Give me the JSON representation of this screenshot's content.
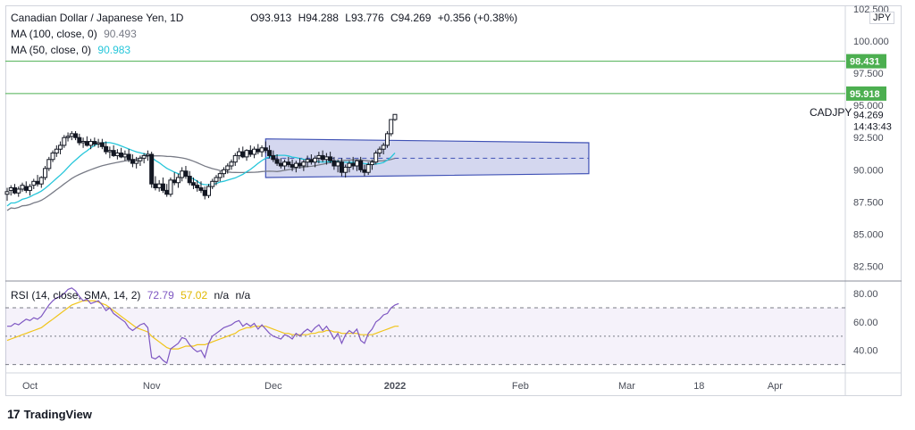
{
  "header": {
    "symbol_title": "Canadian Dollar / Japanese Yen, 1D",
    "open": "O93.913",
    "high": "H94.288",
    "low": "L93.776",
    "close": "C94.269",
    "change": "+0.356 (+0.38%)",
    "ma100_label": "MA (100, close, 0)",
    "ma100_value": "90.493",
    "ma50_label": "MA (50, close, 0)",
    "ma50_value": "90.983"
  },
  "rsi_header": {
    "label": "RSI (14, close, SMA, 14, 2)",
    "rsi_value": "72.79",
    "sma_value": "57.02",
    "na1": "n/a",
    "na2": "n/a"
  },
  "currency": "JPY",
  "ticker": "CADJPY",
  "countdown": "14:43:43",
  "brand": "TradingView",
  "colors": {
    "bull": "#131722",
    "ma50": "#26c6da",
    "ma100": "#787b86",
    "rsi": "#7e57c2",
    "rsi_sma": "#f0c419",
    "hline": "#4caf50",
    "channel_fill": "#c5cae9",
    "channel_stroke": "#3f51b5"
  },
  "chart_data": [
    {
      "type": "candlestick",
      "title": "Canadian Dollar / Japanese Yen, 1D",
      "ylim": [
        81.5,
        102.7
      ],
      "y_ticks": [
        "102.500",
        "100.000",
        "97.500",
        "95.000",
        "92.500",
        "90.000",
        "87.500",
        "85.000",
        "82.500"
      ],
      "y_tick_values": [
        102.5,
        100,
        97.5,
        95,
        92.5,
        90,
        87.5,
        85,
        82.5
      ],
      "x_ticks": [
        "Oct",
        "Nov",
        "Dec",
        "2022",
        "Feb",
        "Mar",
        "18",
        "Apr"
      ],
      "x_tick_index": [
        6,
        38,
        70,
        102,
        135,
        163,
        182,
        202
      ],
      "index_range": [
        0,
        220
      ],
      "candles_ohlc": [
        [
          88.1,
          88.6,
          87.6,
          88.3
        ],
        [
          88.4,
          88.8,
          88.0,
          88.6
        ],
        [
          88.6,
          88.9,
          88.1,
          88.2
        ],
        [
          88.2,
          88.7,
          87.9,
          88.5
        ],
        [
          88.5,
          89.0,
          88.3,
          88.8
        ],
        [
          88.7,
          89.1,
          88.2,
          88.4
        ],
        [
          88.4,
          88.9,
          88.0,
          88.7
        ],
        [
          88.8,
          89.3,
          88.5,
          89.1
        ],
        [
          89.1,
          89.6,
          88.7,
          88.9
        ],
        [
          88.9,
          89.5,
          88.6,
          89.4
        ],
        [
          89.4,
          90.3,
          89.2,
          90.1
        ],
        [
          90.1,
          91.0,
          89.9,
          90.8
        ],
        [
          90.8,
          91.5,
          90.6,
          91.3
        ],
        [
          91.3,
          91.9,
          91.0,
          91.6
        ],
        [
          91.6,
          92.2,
          91.2,
          91.9
        ],
        [
          91.9,
          92.7,
          91.7,
          92.5
        ],
        [
          92.5,
          92.9,
          92.2,
          92.6
        ],
        [
          92.6,
          93.0,
          92.3,
          92.8
        ],
        [
          92.8,
          93.0,
          92.3,
          92.5
        ],
        [
          92.5,
          92.8,
          91.9,
          92.1
        ],
        [
          92.1,
          92.5,
          91.7,
          92.2
        ],
        [
          92.2,
          92.6,
          91.8,
          91.9
        ],
        [
          91.9,
          92.4,
          91.6,
          92.2
        ],
        [
          92.2,
          92.5,
          91.8,
          92.0
        ],
        [
          92.0,
          92.4,
          91.7,
          92.1
        ],
        [
          92.1,
          92.4,
          91.6,
          91.8
        ],
        [
          91.8,
          92.2,
          91.2,
          91.4
        ],
        [
          91.4,
          91.8,
          90.9,
          91.5
        ],
        [
          91.5,
          91.9,
          91.0,
          91.1
        ],
        [
          91.1,
          91.6,
          90.8,
          91.3
        ],
        [
          91.3,
          91.7,
          90.9,
          91.0
        ],
        [
          91.0,
          91.5,
          90.7,
          91.2
        ],
        [
          91.2,
          91.6,
          90.6,
          90.8
        ],
        [
          90.8,
          91.2,
          90.2,
          90.5
        ],
        [
          90.5,
          91.0,
          90.1,
          90.7
        ],
        [
          90.7,
          91.1,
          90.3,
          90.9
        ],
        [
          90.9,
          91.3,
          90.5,
          91.1
        ],
        [
          91.1,
          91.5,
          90.7,
          91.2
        ],
        [
          91.2,
          91.4,
          88.6,
          88.9
        ],
        [
          88.9,
          89.5,
          88.4,
          88.6
        ],
        [
          88.6,
          89.2,
          88.3,
          88.9
        ],
        [
          88.9,
          89.4,
          88.2,
          88.4
        ],
        [
          88.4,
          88.9,
          87.9,
          88.1
        ],
        [
          88.1,
          89.4,
          87.9,
          89.2
        ],
        [
          89.2,
          89.8,
          88.8,
          89.0
        ],
        [
          89.0,
          89.7,
          88.6,
          89.4
        ],
        [
          89.4,
          90.2,
          89.1,
          89.9
        ],
        [
          89.9,
          90.3,
          89.3,
          89.5
        ],
        [
          89.5,
          89.9,
          88.8,
          89.0
        ],
        [
          89.0,
          89.4,
          88.5,
          88.8
        ],
        [
          88.8,
          89.2,
          88.3,
          88.6
        ],
        [
          88.6,
          89.1,
          88.2,
          88.4
        ],
        [
          88.4,
          88.7,
          87.7,
          88.0
        ],
        [
          88.0,
          88.9,
          87.8,
          88.7
        ],
        [
          88.7,
          89.3,
          88.5,
          89.1
        ],
        [
          89.1,
          89.6,
          88.8,
          89.4
        ],
        [
          89.4,
          89.9,
          89.1,
          89.7
        ],
        [
          89.7,
          90.2,
          89.4,
          90.0
        ],
        [
          90.0,
          90.5,
          89.7,
          90.3
        ],
        [
          90.3,
          90.8,
          90.0,
          90.6
        ],
        [
          90.6,
          91.3,
          90.3,
          91.1
        ],
        [
          91.1,
          91.7,
          90.8,
          91.4
        ],
        [
          91.4,
          91.8,
          90.9,
          91.0
        ],
        [
          91.0,
          91.6,
          90.7,
          91.5
        ],
        [
          91.5,
          91.9,
          91.0,
          91.2
        ],
        [
          91.2,
          91.8,
          90.9,
          91.6
        ],
        [
          91.6,
          92.0,
          91.2,
          91.4
        ],
        [
          91.4,
          91.9,
          91.0,
          91.7
        ],
        [
          91.7,
          92.2,
          91.3,
          91.5
        ],
        [
          91.5,
          91.9,
          90.9,
          91.1
        ],
        [
          91.1,
          91.5,
          90.6,
          90.8
        ],
        [
          90.8,
          91.2,
          90.3,
          90.5
        ],
        [
          90.5,
          90.9,
          90.1,
          90.3
        ],
        [
          90.3,
          90.8,
          90.0,
          90.6
        ],
        [
          90.6,
          91.0,
          90.2,
          90.4
        ],
        [
          90.4,
          90.8,
          89.9,
          90.2
        ],
        [
          90.2,
          90.7,
          89.8,
          90.5
        ],
        [
          90.5,
          90.9,
          90.1,
          90.3
        ],
        [
          90.3,
          90.8,
          89.9,
          90.6
        ],
        [
          90.6,
          91.1,
          90.2,
          90.8
        ],
        [
          90.8,
          91.2,
          90.4,
          90.6
        ],
        [
          90.6,
          91.1,
          90.2,
          90.9
        ],
        [
          90.9,
          91.4,
          90.5,
          91.1
        ],
        [
          91.1,
          91.5,
          90.6,
          90.8
        ],
        [
          90.8,
          91.3,
          90.4,
          91.0
        ],
        [
          91.0,
          91.4,
          90.5,
          90.7
        ],
        [
          90.7,
          91.0,
          90.0,
          90.3
        ],
        [
          90.3,
          90.8,
          89.8,
          90.6
        ],
        [
          90.6,
          90.9,
          89.5,
          89.8
        ],
        [
          89.8,
          90.4,
          89.4,
          90.2
        ],
        [
          90.2,
          90.7,
          89.8,
          90.5
        ],
        [
          90.5,
          91.0,
          90.0,
          90.3
        ],
        [
          90.3,
          90.8,
          89.9,
          90.7
        ],
        [
          90.7,
          91.0,
          89.8,
          90.0
        ],
        [
          90.0,
          90.4,
          89.5,
          89.8
        ],
        [
          89.8,
          90.6,
          89.6,
          90.4
        ],
        [
          90.4,
          90.8,
          90.0,
          90.6
        ],
        [
          90.6,
          91.5,
          90.4,
          91.3
        ],
        [
          91.3,
          91.8,
          91.0,
          91.6
        ],
        [
          91.6,
          92.1,
          91.2,
          91.9
        ],
        [
          91.9,
          93.0,
          91.7,
          92.8
        ],
        [
          92.8,
          93.6,
          92.6,
          93.9
        ],
        [
          93.9,
          94.3,
          93.8,
          94.3
        ]
      ]
    },
    {
      "type": "line",
      "title": "RSI (14, close, SMA, 14, 2)",
      "ylim": [
        26,
        87
      ],
      "y_ticks": [
        "80.00",
        "60.00",
        "40.00"
      ],
      "y_tick_values": [
        80,
        60,
        40
      ],
      "bands": [
        70,
        50,
        30
      ],
      "series": [
        {
          "name": "RSI",
          "values": [
            57,
            57,
            59,
            58,
            60,
            62,
            61,
            63,
            62,
            64,
            68,
            72,
            75,
            77,
            78,
            80,
            83,
            84,
            82,
            78,
            75,
            76,
            73,
            74,
            75,
            72,
            68,
            70,
            66,
            64,
            62,
            60,
            56,
            54,
            56,
            58,
            59,
            56,
            35,
            34,
            36,
            33,
            31,
            41,
            43,
            45,
            49,
            48,
            44,
            41,
            39,
            40,
            35,
            45,
            50,
            52,
            54,
            56,
            57,
            58,
            60,
            61,
            57,
            59,
            57,
            59,
            55,
            58,
            55,
            52,
            50,
            49,
            48,
            51,
            50,
            48,
            52,
            50,
            53,
            55,
            53,
            56,
            58,
            54,
            57,
            53,
            48,
            52,
            45,
            51,
            54,
            52,
            55,
            47,
            45,
            52,
            55,
            60,
            62,
            65,
            66,
            70,
            72,
            73
          ]
        },
        {
          "name": "SMA",
          "values": [
            47,
            48,
            49,
            50,
            51,
            52,
            53,
            54,
            55,
            56,
            58,
            60,
            62,
            64,
            66,
            68,
            70,
            72,
            73,
            74,
            75,
            75,
            75,
            75,
            74,
            73,
            72,
            70,
            68,
            66,
            64,
            62,
            60,
            58,
            56,
            55,
            54,
            53,
            50,
            48,
            46,
            44,
            42,
            41,
            41,
            41,
            42,
            43,
            43,
            43,
            44,
            44,
            44,
            45,
            46,
            47,
            48,
            49,
            50,
            51,
            52,
            54,
            55,
            56,
            56,
            57,
            57,
            57,
            57,
            56,
            55,
            54,
            53,
            52,
            52,
            51,
            51,
            51,
            51,
            51,
            52,
            52,
            53,
            53,
            54,
            54,
            53,
            53,
            52,
            52,
            52,
            52,
            52,
            51,
            51,
            51,
            51,
            52,
            53,
            54,
            55,
            56,
            57,
            57
          ]
        }
      ]
    }
  ],
  "price_lines": {
    "upper_label": "98.431",
    "upper_value": 98.431,
    "lower_label": "95.918",
    "lower_value": 95.918,
    "last_label": "94.269",
    "last_value": 94.269
  },
  "channel": {
    "start_index": 68,
    "end_index": 153,
    "top_start": 92.4,
    "top_end": 92.1,
    "bottom_start": 89.4,
    "bottom_end": 89.7,
    "mid_start": 90.9,
    "mid_end": 90.9
  }
}
